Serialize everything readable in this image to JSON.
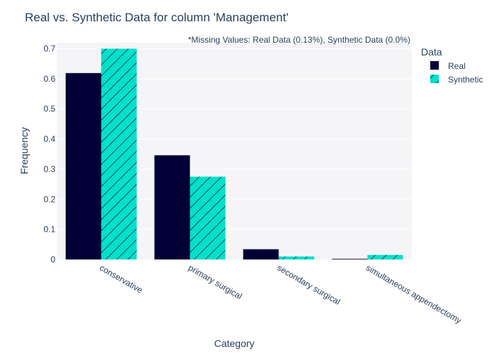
{
  "chart_data": {
    "type": "bar",
    "title": "Real vs. Synthetic Data for column 'Management'",
    "annotation": "*Missing Values: Real Data (0.13%), Synthetic Data (0.0%)",
    "xlabel": "Category",
    "ylabel": "Frequency",
    "categories": [
      "conservative",
      "primary surgical",
      "secondary surgical",
      "simultaneous appendectomy"
    ],
    "series": [
      {
        "name": "Real",
        "values": [
          0.619,
          0.346,
          0.034,
          0.002
        ],
        "color": "#000036",
        "pattern": "solid"
      },
      {
        "name": "Synthetic",
        "values": [
          0.7,
          0.275,
          0.01,
          0.015
        ],
        "color": "#01E0C9",
        "pattern": "diagonal-hatch"
      }
    ],
    "ylim": [
      0,
      0.72
    ],
    "yticks": [
      0,
      0.1,
      0.2,
      0.3,
      0.4,
      0.5,
      0.6,
      0.7
    ],
    "ytick_labels": [
      "0",
      "0.1",
      "0.2",
      "0.3",
      "0.4",
      "0.5",
      "0.6",
      "0.7"
    ],
    "grid": true,
    "legend": {
      "title": "Data",
      "placement": "top-right"
    },
    "colors": {
      "plot_bg": "#F5F5F8",
      "grid": "#FFFFFF",
      "text": "#2a3f5f"
    }
  }
}
